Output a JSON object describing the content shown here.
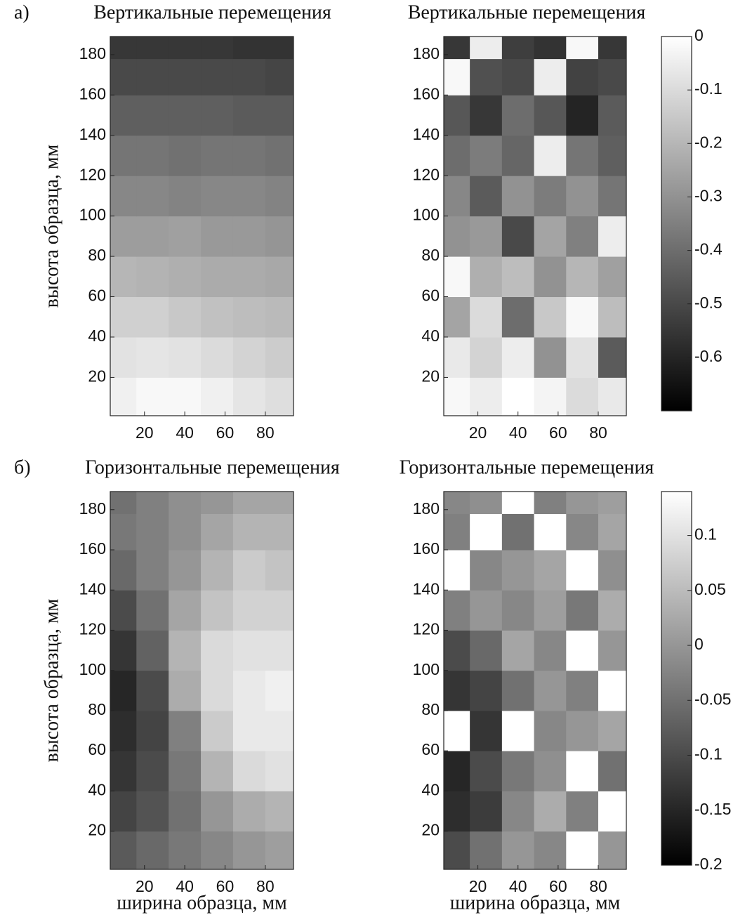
{
  "chart_data": [
    {
      "type": "contour",
      "panel_label": "а)",
      "title": "Вертикальные перемещения",
      "ylabel": "высота образца, мм",
      "x": [
        8,
        24,
        40,
        56,
        72,
        88
      ],
      "y": [
        10,
        30,
        50,
        70,
        90,
        110,
        130,
        150,
        170,
        186
      ],
      "z": [
        [
          -0.04,
          -0.02,
          -0.02,
          -0.04,
          -0.07,
          -0.09
        ],
        [
          -0.08,
          -0.07,
          -0.08,
          -0.1,
          -0.12,
          -0.14
        ],
        [
          -0.13,
          -0.13,
          -0.15,
          -0.17,
          -0.18,
          -0.19
        ],
        [
          -0.2,
          -0.21,
          -0.22,
          -0.23,
          -0.23,
          -0.24
        ],
        [
          -0.27,
          -0.27,
          -0.26,
          -0.28,
          -0.28,
          -0.29
        ],
        [
          -0.33,
          -0.33,
          -0.34,
          -0.33,
          -0.33,
          -0.34
        ],
        [
          -0.38,
          -0.38,
          -0.39,
          -0.38,
          -0.38,
          -0.39
        ],
        [
          -0.44,
          -0.44,
          -0.44,
          -0.44,
          -0.45,
          -0.45
        ],
        [
          -0.5,
          -0.5,
          -0.5,
          -0.5,
          -0.5,
          -0.51
        ],
        [
          -0.55,
          -0.55,
          -0.55,
          -0.55,
          -0.56,
          -0.56
        ]
      ],
      "xlim": [
        3,
        94
      ],
      "ylim": [
        1,
        189
      ],
      "xticks": [
        20,
        40,
        60,
        80
      ],
      "yticks": [
        20,
        40,
        60,
        80,
        100,
        120,
        140,
        160,
        180
      ]
    },
    {
      "type": "contour",
      "title": "Вертикальные перемещения",
      "x": [
        8,
        24,
        40,
        56,
        72,
        88
      ],
      "y": [
        10,
        30,
        50,
        70,
        90,
        110,
        130,
        150,
        170,
        186
      ],
      "z": [
        [
          -0.02,
          -0.05,
          0,
          -0.03,
          -0.1,
          -0.06
        ],
        [
          -0.06,
          -0.12,
          -0.05,
          -0.3,
          -0.08,
          -0.45
        ],
        [
          -0.25,
          -0.1,
          -0.4,
          -0.15,
          -0.02,
          -0.18
        ],
        [
          -0.02,
          -0.22,
          -0.18,
          -0.3,
          -0.2,
          -0.26
        ],
        [
          -0.3,
          -0.28,
          -0.5,
          -0.25,
          -0.35,
          -0.05
        ],
        [
          -0.33,
          -0.45,
          -0.3,
          -0.36,
          -0.3,
          -0.38
        ],
        [
          -0.4,
          -0.36,
          -0.42,
          -0.05,
          -0.38,
          -0.44
        ],
        [
          -0.46,
          -0.55,
          -0.4,
          -0.46,
          -0.6,
          -0.45
        ],
        [
          -0.02,
          -0.48,
          -0.5,
          -0.05,
          -0.52,
          -0.5
        ],
        [
          -0.55,
          -0.05,
          -0.53,
          -0.56,
          -0.02,
          -0.55
        ]
      ],
      "xlim": [
        3,
        94
      ],
      "ylim": [
        1,
        189
      ],
      "xticks": [
        20,
        40,
        60,
        80
      ],
      "yticks": [
        20,
        40,
        60,
        80,
        100,
        120,
        140,
        160,
        180
      ],
      "clim": [
        -0.7,
        0
      ],
      "cticks": [
        0,
        -0.1,
        -0.2,
        -0.3,
        -0.4,
        -0.5,
        -0.6
      ]
    },
    {
      "type": "contour",
      "panel_label": "б)",
      "title": "Горизонтальные перемещения",
      "ylabel": "высота образца, мм",
      "xlabel": "ширина образца, мм",
      "x": [
        8,
        24,
        40,
        56,
        72,
        88
      ],
      "y": [
        10,
        30,
        50,
        70,
        90,
        110,
        130,
        150,
        170,
        186
      ],
      "z": [
        [
          -0.08,
          -0.06,
          -0.04,
          -0.02,
          0,
          0.01
        ],
        [
          -0.11,
          -0.09,
          -0.05,
          0,
          0.03,
          0.04
        ],
        [
          -0.13,
          -0.1,
          -0.04,
          0.04,
          0.09,
          0.1
        ],
        [
          -0.14,
          -0.11,
          -0.03,
          0.07,
          0.11,
          0.11
        ],
        [
          -0.15,
          -0.1,
          0.03,
          0.09,
          0.11,
          0.12
        ],
        [
          -0.13,
          -0.07,
          0.04,
          0.09,
          0.1,
          0.1
        ],
        [
          -0.1,
          -0.05,
          0.02,
          0.06,
          0.08,
          0.08
        ],
        [
          -0.06,
          -0.03,
          0,
          0.04,
          0.07,
          0.06
        ],
        [
          -0.04,
          -0.03,
          -0.01,
          0.02,
          0.04,
          0.04
        ],
        [
          -0.05,
          -0.03,
          -0.01,
          0,
          0.02,
          0.02
        ]
      ],
      "xlim": [
        3,
        94
      ],
      "ylim": [
        1,
        189
      ],
      "xticks": [
        20,
        40,
        60,
        80
      ],
      "yticks": [
        20,
        40,
        60,
        80,
        100,
        120,
        140,
        160,
        180
      ]
    },
    {
      "type": "contour",
      "title": "Горизонтальные перемещения",
      "xlabel": "ширина образца, мм",
      "x": [
        8,
        24,
        40,
        56,
        72,
        88
      ],
      "y": [
        10,
        30,
        50,
        70,
        90,
        110,
        130,
        150,
        170,
        186
      ],
      "z": [
        [
          -0.1,
          -0.05,
          0,
          -0.02,
          0.14,
          0
        ],
        [
          -0.14,
          -0.12,
          -0.02,
          0.03,
          -0.03,
          0.14
        ],
        [
          -0.15,
          -0.1,
          -0.04,
          -0.01,
          0.14,
          -0.05
        ],
        [
          0.14,
          -0.13,
          0.14,
          -0.02,
          0,
          0.02
        ],
        [
          -0.13,
          -0.11,
          -0.05,
          0,
          -0.03,
          0.14
        ],
        [
          -0.1,
          -0.06,
          0.02,
          -0.02,
          0.14,
          0
        ],
        [
          -0.03,
          0,
          -0.02,
          0.01,
          -0.04,
          0.03
        ],
        [
          0.14,
          -0.02,
          0,
          0.02,
          0.14,
          -0.01
        ],
        [
          -0.03,
          0.14,
          -0.05,
          0.14,
          -0.02,
          0.02
        ],
        [
          -0.02,
          -0.01,
          0.14,
          -0.03,
          0,
          0.01
        ]
      ],
      "xlim": [
        3,
        94
      ],
      "ylim": [
        1,
        189
      ],
      "xticks": [
        20,
        40,
        60,
        80
      ],
      "yticks": [
        20,
        40,
        60,
        80,
        100,
        120,
        140,
        160,
        180
      ],
      "clim": [
        -0.2,
        0.14
      ],
      "cticks": [
        0.1,
        0.05,
        0,
        -0.05,
        -0.1,
        -0.15,
        -0.2
      ]
    }
  ]
}
